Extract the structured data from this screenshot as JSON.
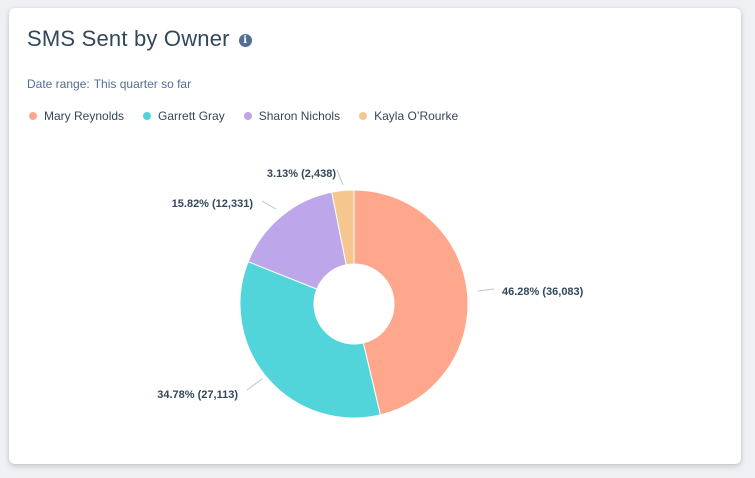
{
  "card": {
    "title": "SMS Sent by Owner",
    "date_range_label": "Date range:",
    "date_range_value": "This quarter so far"
  },
  "icons": {
    "info": "info-icon"
  },
  "chart_data": {
    "type": "pie",
    "donut": true,
    "title": "SMS Sent by Owner",
    "legend_position": "top-left",
    "slices": [
      {
        "name": "Mary Reynolds",
        "value": 36083,
        "percent": 46.28,
        "label": "46.28% (36,083)",
        "color": "#ffa78d"
      },
      {
        "name": "Garrett Gray",
        "value": 27113,
        "percent": 34.78,
        "label": "34.78% (27,113)",
        "color": "#51d4da"
      },
      {
        "name": "Sharon Nichols",
        "value": 12331,
        "percent": 15.82,
        "label": "15.82% (12,331)",
        "color": "#bda7ea"
      },
      {
        "name": "Kayla O’Rourke",
        "value": 2438,
        "percent": 3.13,
        "label": "3.13% (2,438)",
        "color": "#f5c78e"
      }
    ]
  }
}
